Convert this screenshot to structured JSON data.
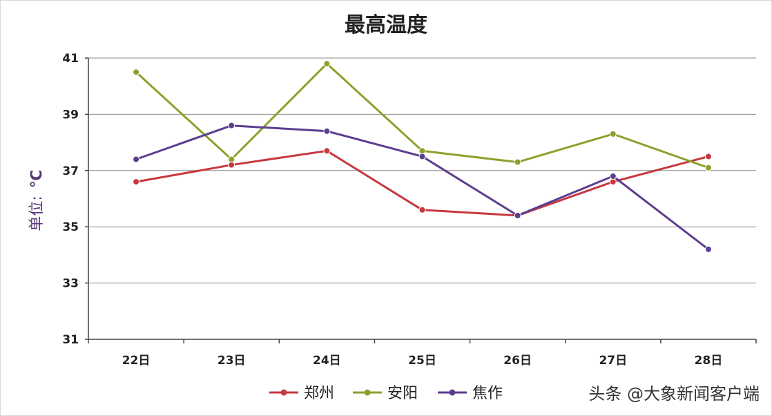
{
  "chart_data": {
    "type": "line",
    "title": "最高温度",
    "ylabel_text": "单位:",
    "ylabel_unit": "℃",
    "categories": [
      "22日",
      "23日",
      "24日",
      "25日",
      "26日",
      "27日",
      "28日"
    ],
    "yticks": [
      "31",
      "33",
      "35",
      "37",
      "39",
      "41"
    ],
    "ylim": [
      31,
      41
    ],
    "grid": true,
    "legend_position": "bottom",
    "series": [
      {
        "name": "郑州",
        "color": "#c8373f",
        "values": [
          36.6,
          37.2,
          37.7,
          35.6,
          35.4,
          36.6,
          37.5
        ]
      },
      {
        "name": "安阳",
        "color": "#8aa12c",
        "values": [
          40.5,
          37.4,
          40.8,
          37.7,
          37.3,
          38.3,
          37.1
        ]
      },
      {
        "name": "焦作",
        "color": "#5c3d8f",
        "values": [
          37.4,
          38.6,
          38.4,
          37.5,
          35.4,
          36.8,
          34.2
        ]
      }
    ]
  },
  "watermark": "头条 @大象新闻客户端"
}
